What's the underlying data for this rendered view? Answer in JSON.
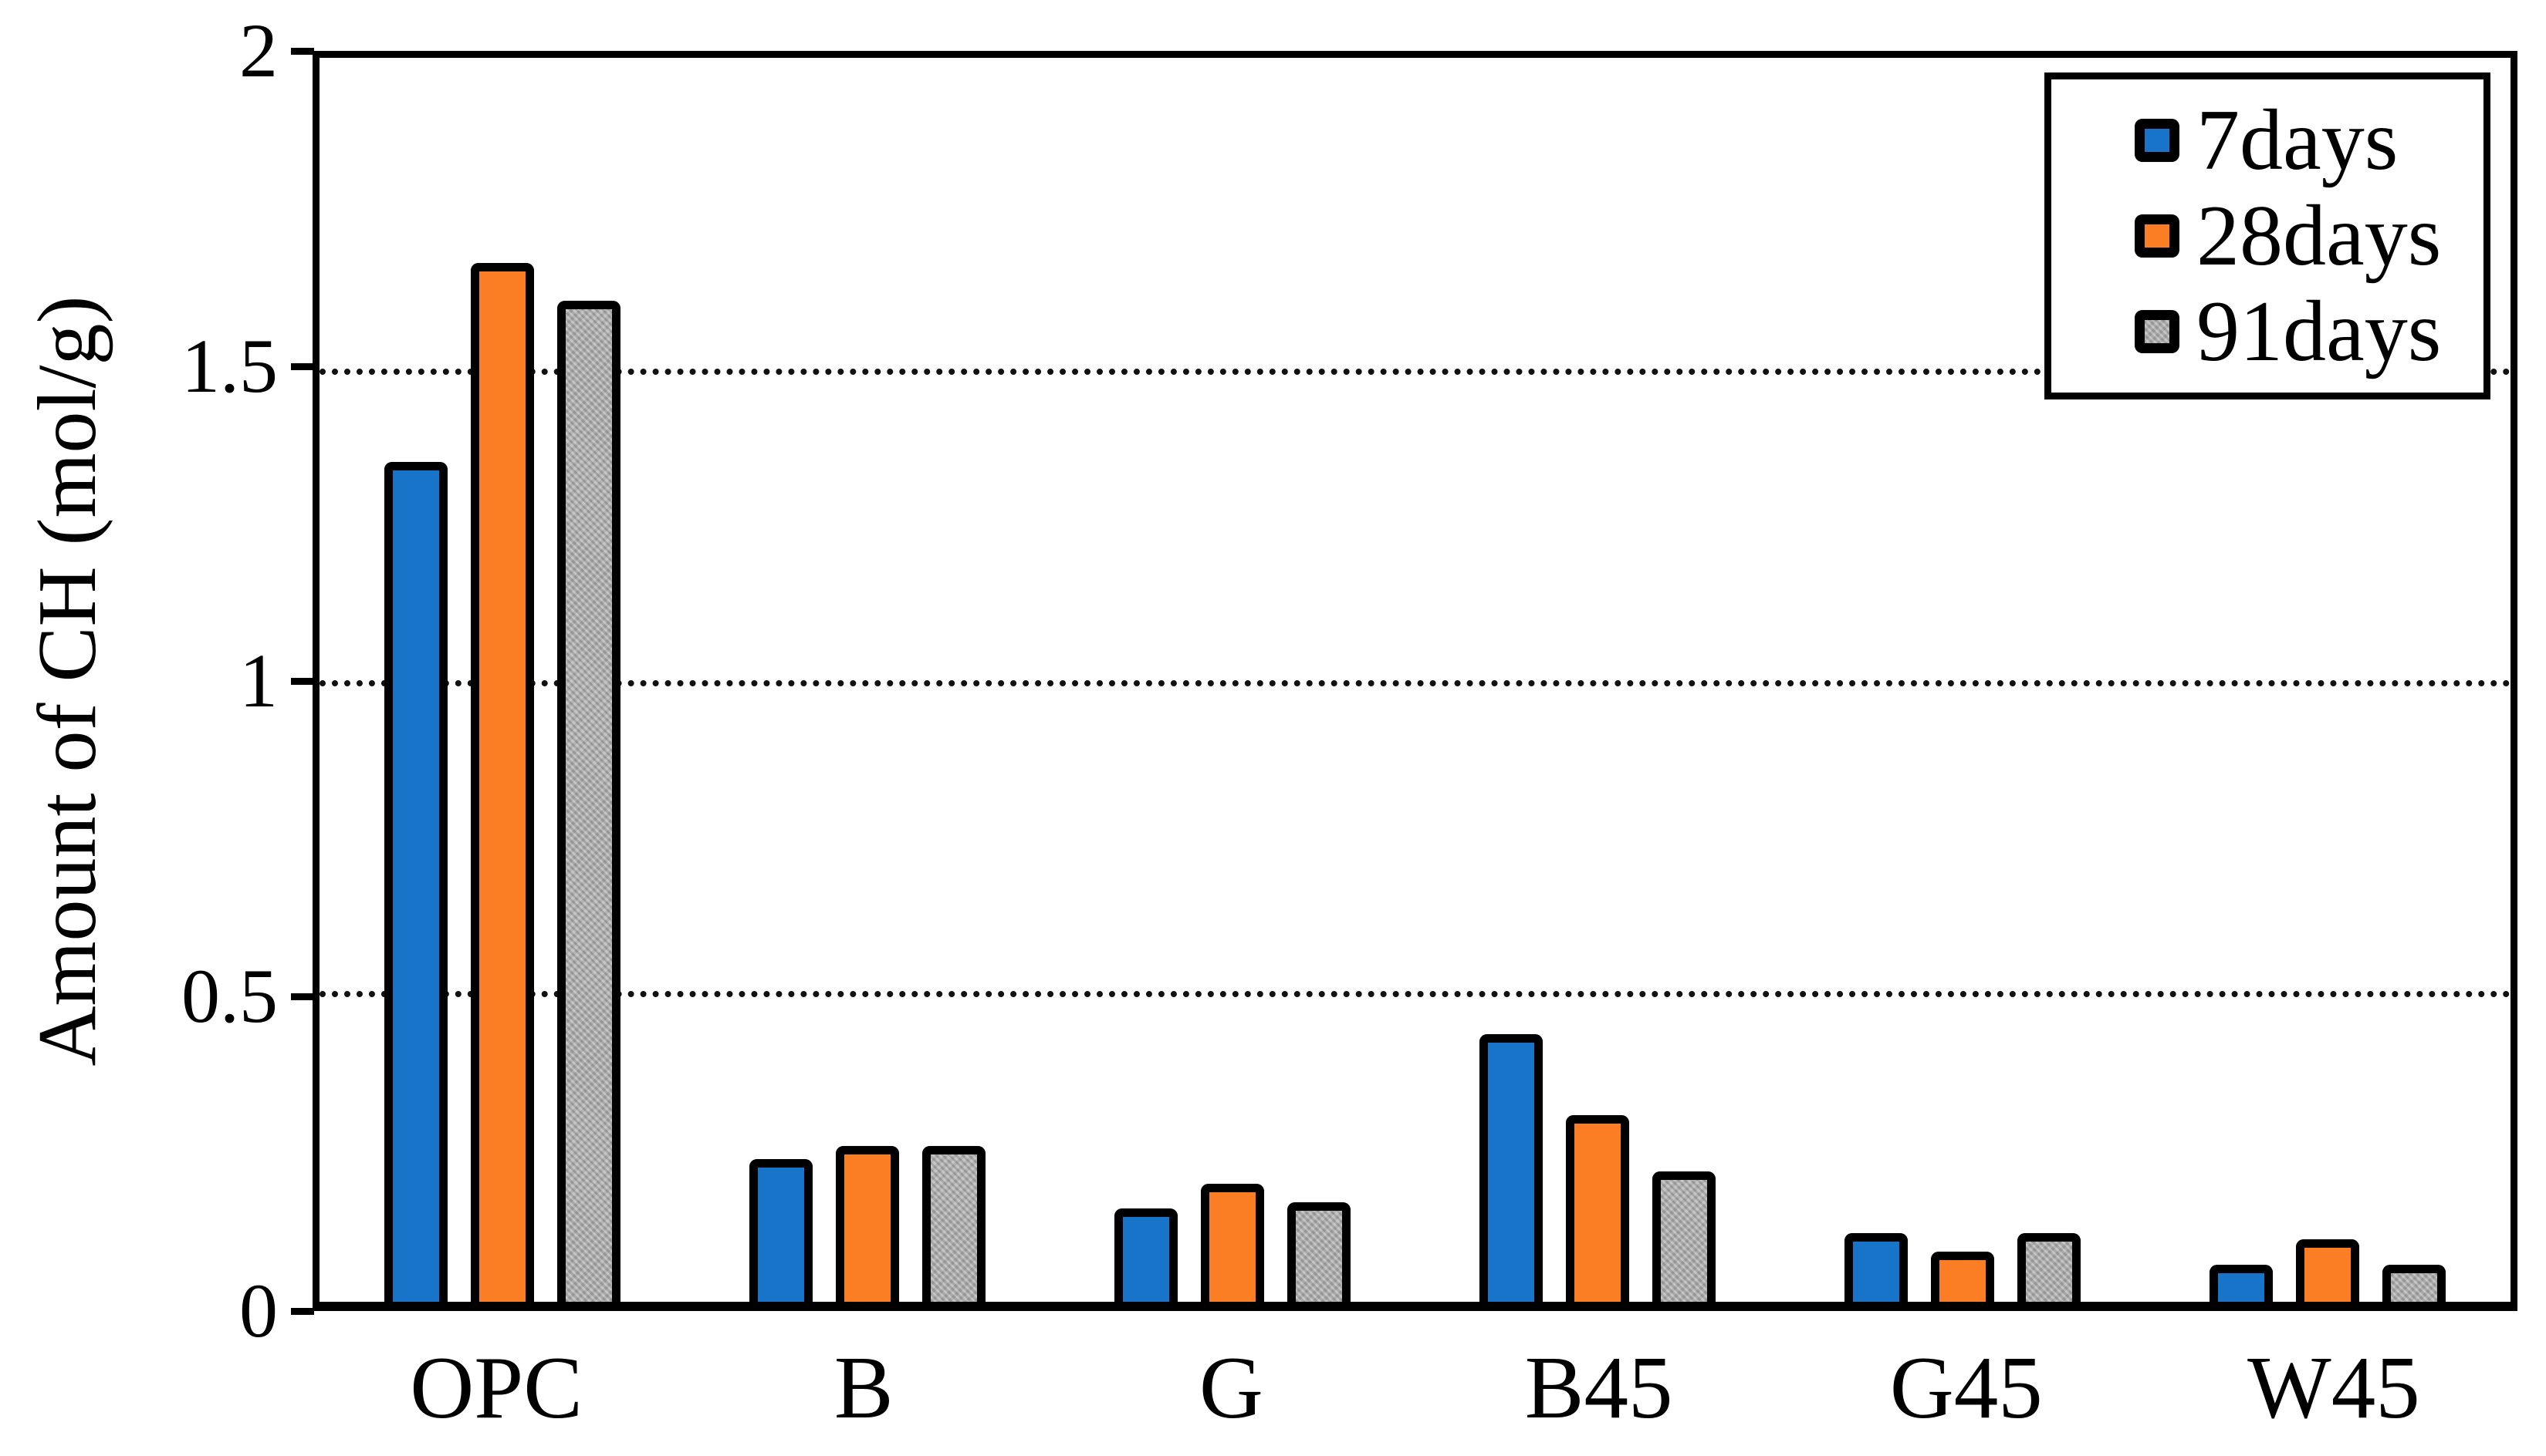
{
  "figure": {
    "background_color": "#ffffff",
    "axis_color": "#000000",
    "gridline_style": "dotted"
  },
  "y_axis": {
    "title": "Amount of CH (mol/g)",
    "tick_labels": [
      "2",
      "1.5",
      "1",
      "0.5",
      "0"
    ],
    "tick_values": [
      2,
      1.5,
      1,
      0.5,
      0
    ],
    "gridline_values": [
      1.5,
      1,
      0.5
    ]
  },
  "x_axis": {
    "labels": [
      "OPC",
      "B",
      "G",
      "B45",
      "G45",
      "W45"
    ]
  },
  "legend": {
    "position": "top-right",
    "items": [
      {
        "label": "7days",
        "color": "#1774C8",
        "pattern": "solid"
      },
      {
        "label": "28days",
        "color": "#FB7D24",
        "pattern": "solid"
      },
      {
        "label": "91days",
        "color": "#b3b3b3",
        "pattern": "texture"
      }
    ]
  },
  "chart_data": {
    "type": "bar",
    "title": "",
    "xlabel": "",
    "ylabel": "Amount of CH (mol/g)",
    "ylim": [
      0,
      2
    ],
    "grid": "horizontal dotted lines every 0.5",
    "legend_position": "top-right",
    "categories": [
      "OPC",
      "B",
      "G",
      "B45",
      "G45",
      "W45"
    ],
    "series": [
      {
        "name": "7days",
        "color": "#1774C8",
        "fill_class": "fill-7d",
        "values": [
          1.35,
          0.23,
          0.15,
          0.43,
          0.11,
          0.06
        ]
      },
      {
        "name": "28days",
        "color": "#FB7D24",
        "fill_class": "fill-28d",
        "values": [
          1.67,
          0.25,
          0.19,
          0.3,
          0.08,
          0.1
        ]
      },
      {
        "name": "91days",
        "color": "#b3b3b3",
        "fill_class": "fill-91d",
        "values": [
          1.61,
          0.25,
          0.16,
          0.21,
          0.11,
          0.06
        ]
      }
    ]
  }
}
